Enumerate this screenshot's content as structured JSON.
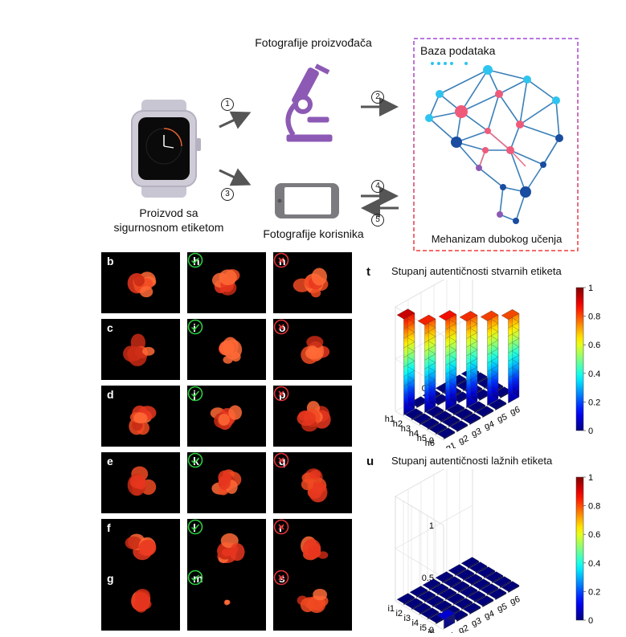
{
  "top": {
    "manufacturer_photos": "Fotografije proizvođača",
    "product_label_line1": "Proizvod sa",
    "product_label_line2": "sigurnosnom etiketom",
    "user_photos": "Fotografije korisnika",
    "database": "Baza podataka",
    "deep_learning": "Mehanizam dubokog učenja",
    "steps": [
      "1",
      "2",
      "3",
      "4",
      "5"
    ]
  },
  "tiles": {
    "col1": [
      "b",
      "c",
      "d",
      "e",
      "f",
      "g"
    ],
    "col2": [
      "h",
      "i",
      "j",
      "k",
      "l",
      "m"
    ],
    "col3": [
      "n",
      "o",
      "p",
      "q",
      "r",
      "s"
    ]
  },
  "chart_data": [
    {
      "type": "bar3d",
      "panel": "t",
      "title": "Stupanj autentičnosti stvarnih etiketa",
      "rows": [
        "h1",
        "h2",
        "h3",
        "h4",
        "h5",
        "h6"
      ],
      "cols": [
        "g1",
        "g2",
        "g3",
        "g4",
        "g5",
        "g6"
      ],
      "zlim": [
        0,
        1
      ],
      "zticks": [
        "0",
        "0.5",
        "1"
      ],
      "colorbar_ticks": [
        "1",
        "0.8",
        "0.6",
        "0.4",
        "0.2",
        "0"
      ],
      "values": [
        [
          0.92,
          0,
          0,
          0,
          0,
          0
        ],
        [
          0,
          0.84,
          0,
          0,
          0,
          0
        ],
        [
          0,
          0,
          0.86,
          0,
          0,
          0
        ],
        [
          0,
          0,
          0,
          0.83,
          0,
          0
        ],
        [
          0,
          0,
          0,
          0,
          0.81,
          0
        ],
        [
          0,
          0,
          0,
          0,
          0,
          0.8
        ]
      ]
    },
    {
      "type": "bar3d",
      "panel": "u",
      "title": "Stupanj autentičnosti lažnih etiketa",
      "rows": [
        "i1",
        "i2",
        "i3",
        "i4",
        "i5",
        "i6"
      ],
      "cols": [
        "g1",
        "g2",
        "g3",
        "g4",
        "g5",
        "g6"
      ],
      "zlim": [
        0,
        1
      ],
      "zticks": [
        "0",
        "0.5",
        "1"
      ],
      "colorbar_ticks": [
        "1",
        "0.8",
        "0.6",
        "0.4",
        "0.2",
        "0"
      ],
      "values": [
        [
          0,
          0,
          0,
          0,
          0,
          0
        ],
        [
          0,
          0,
          0,
          0,
          0,
          0
        ],
        [
          0,
          0,
          0,
          0,
          0,
          0
        ],
        [
          0,
          0,
          0,
          0,
          0,
          0
        ],
        [
          0,
          0,
          0,
          0,
          0,
          0
        ],
        [
          0.09,
          0,
          0,
          0,
          0,
          0
        ]
      ]
    }
  ]
}
